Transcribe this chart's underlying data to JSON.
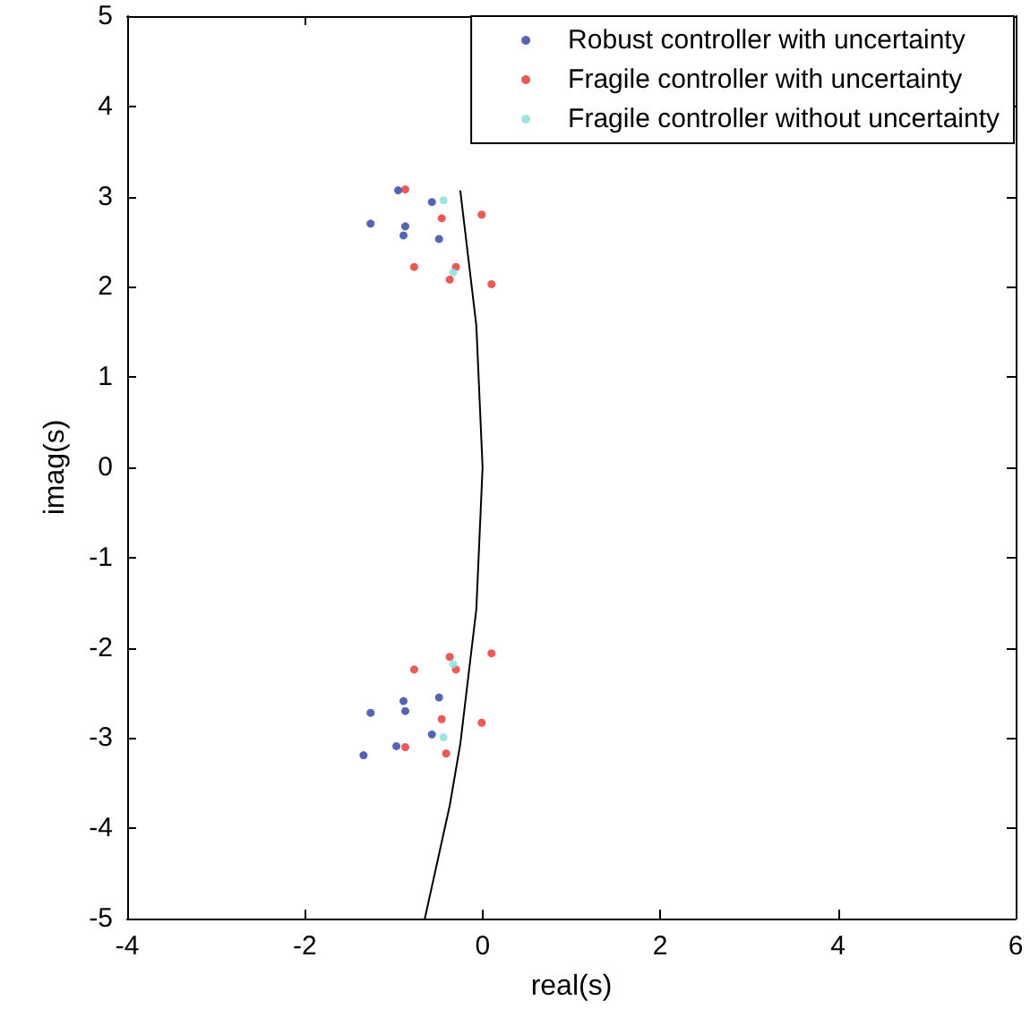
{
  "chart_data": {
    "type": "scatter",
    "xlabel": "real(s)",
    "ylabel": "imag(s)",
    "xlim": [
      -4,
      6
    ],
    "xticks": [
      -4,
      -2,
      0,
      2,
      4,
      6
    ],
    "ylim": [
      -5,
      5
    ],
    "yticks": [
      -5,
      -4,
      -3,
      -2,
      -1,
      0,
      1,
      2,
      3,
      4,
      5
    ],
    "grid": false,
    "legend": "top right",
    "marker": "circle",
    "series": [
      {
        "name": "Robust controller with uncertainty",
        "color": "#2b3fa0",
        "x": [
          -0.95,
          -0.57,
          -1.26,
          -0.87,
          -0.89,
          -0.49,
          -0.89,
          -1.26,
          -0.87,
          -0.49,
          -0.57,
          -0.97,
          -1.34
        ],
        "values": [
          3.07,
          2.94,
          2.7,
          2.67,
          2.57,
          2.53,
          -2.59,
          -2.72,
          -2.7,
          -2.55,
          -2.96,
          -3.09,
          -3.19
        ]
      },
      {
        "name": "Fragile controller with uncertainty",
        "color": "#e8302a",
        "x": [
          -0.87,
          -0.46,
          -0.01,
          -0.77,
          -0.3,
          -0.37,
          0.1,
          -0.37,
          0.1,
          -0.77,
          -0.3,
          -0.46,
          -0.01,
          -0.87,
          -0.41
        ],
        "values": [
          3.08,
          2.76,
          2.8,
          2.22,
          2.22,
          2.08,
          2.03,
          -2.1,
          -2.06,
          -2.24,
          -2.24,
          -2.79,
          -2.83,
          -3.1,
          -3.17
        ]
      },
      {
        "name": "Fragile controller without uncertainty",
        "color": "#88dcd8",
        "x": [
          -0.44,
          -0.33,
          -0.33,
          -0.44
        ],
        "values": [
          2.96,
          2.16,
          -2.18,
          -2.99
        ]
      },
      {
        "type": "line",
        "color": "#000000",
        "marker": "none",
        "x": [
          -0.65,
          -0.37,
          -0.25,
          -0.07,
          0,
          -0.07,
          -0.25
        ],
        "values": [
          -5,
          -3.75,
          -3.06,
          -1.57,
          0,
          1.57,
          3.06
        ]
      }
    ]
  }
}
